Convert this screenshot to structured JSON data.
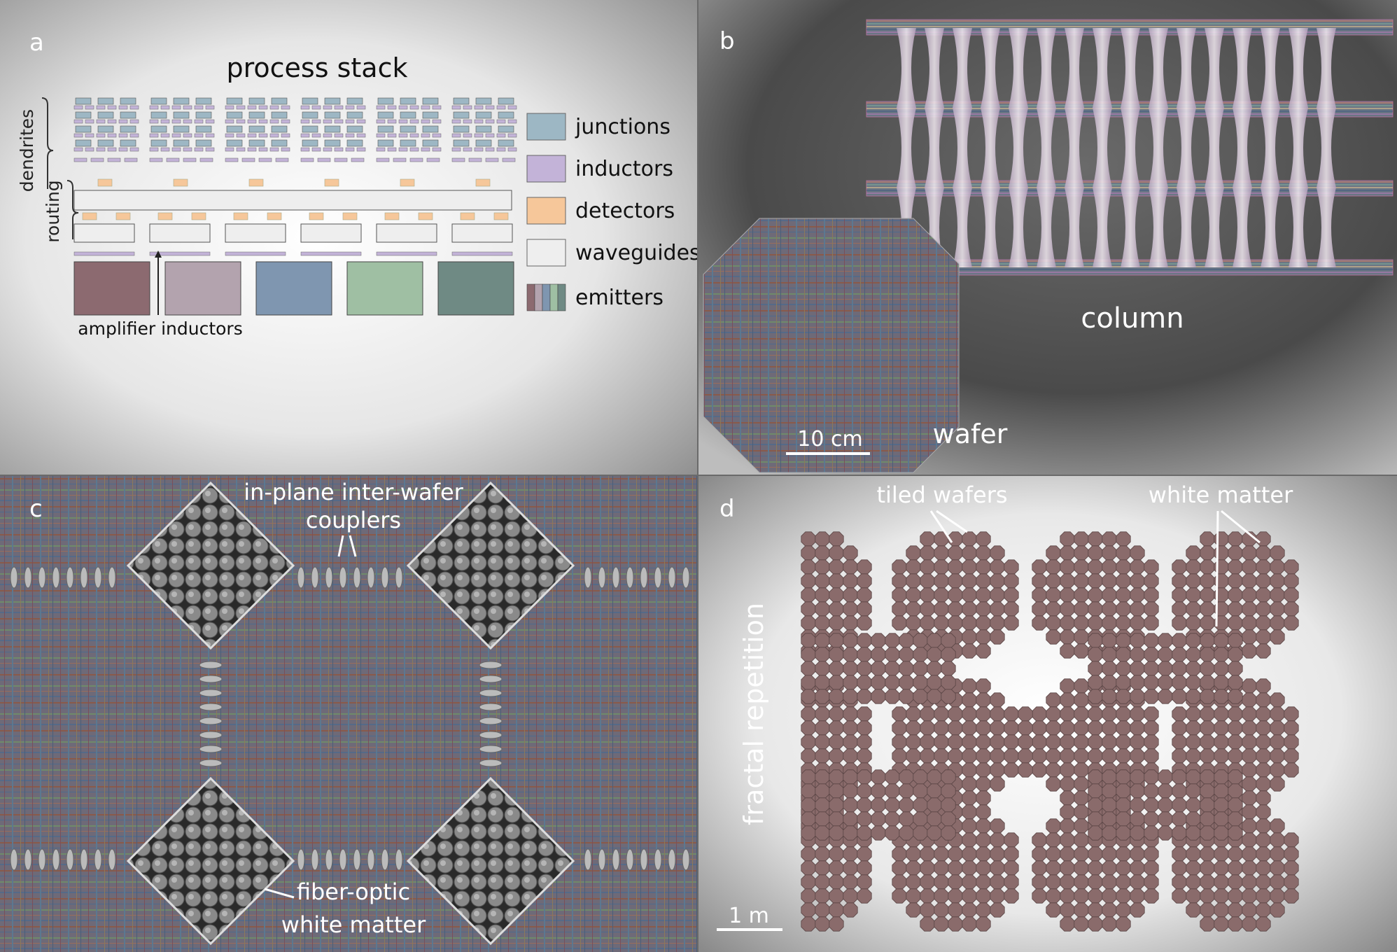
{
  "panels": {
    "a": {
      "letter": "a",
      "title": "process stack",
      "side_labels": {
        "dendrites": "dendrites",
        "routing": "routing"
      },
      "annotation": "amplifier inductors",
      "legend": [
        {
          "label": "junctions",
          "color": "#9db7c4"
        },
        {
          "label": "inductors",
          "color": "#c3b3d8"
        },
        {
          "label": "detectors",
          "color": "#f6c79a"
        },
        {
          "label": "waveguides",
          "color": "#eeeeee"
        },
        {
          "label": "emitters",
          "color": "#8f9aa8"
        }
      ],
      "emitter_colors": [
        "#8c6a70",
        "#b3a3ae",
        "#7f96b0",
        "#9fbfa3",
        "#6f8a84"
      ]
    },
    "b": {
      "letter": "b",
      "column_label": "column",
      "wafer_label": "wafer",
      "scale_label": "10 cm"
    },
    "c": {
      "letter": "c",
      "couplers_label_1": "in-plane inter-wafer",
      "couplers_label_2": "couplers",
      "fiber_label_1": "fiber-optic",
      "fiber_label_2": "white matter"
    },
    "d": {
      "letter": "d",
      "tiled_label": "tiled wafers",
      "white_matter_label": "white matter",
      "side_label": "fractal repetition",
      "scale_label": "1 m",
      "wafer_color": "#8a6b6b"
    }
  }
}
